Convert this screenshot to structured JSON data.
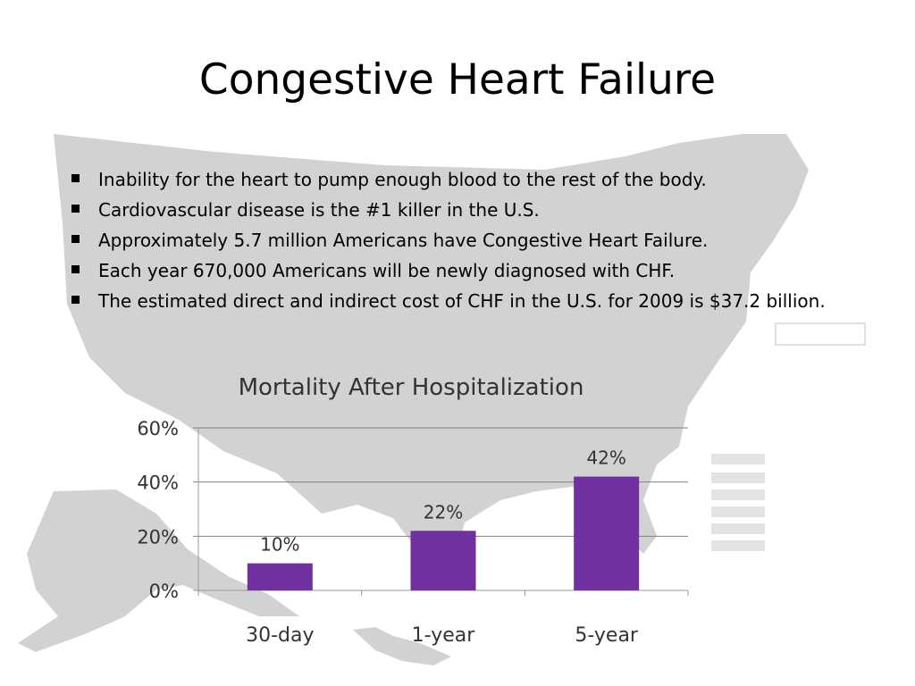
{
  "slide": {
    "title": "Congestive Heart Failure",
    "bullets": [
      "Inability for the heart to pump enough blood to the rest of the body.",
      "Cardiovascular disease is the #1 killer in the U.S.",
      "Approximately 5.7 million Americans have Congestive Heart Failure.",
      "Each year 670,000 Americans will be newly diagnosed with CHF.",
      "The estimated direct and indirect cost of CHF in the U.S. for 2009 is $37.2 billion."
    ]
  },
  "colors": {
    "bar": "#7030a0",
    "map": "#d2d2d2",
    "grid": "#7f7f7f"
  },
  "chart_data": {
    "type": "bar",
    "title": "Mortality After Hospitalization",
    "categories": [
      "30-day",
      "1-year",
      "5-year"
    ],
    "values": [
      10,
      22,
      42
    ],
    "data_labels": [
      "10%",
      "22%",
      "42%"
    ],
    "y_ticks": [
      "0%",
      "20%",
      "40%",
      "60%"
    ],
    "ylim": [
      0,
      60
    ],
    "grid": true,
    "legend": "none"
  }
}
